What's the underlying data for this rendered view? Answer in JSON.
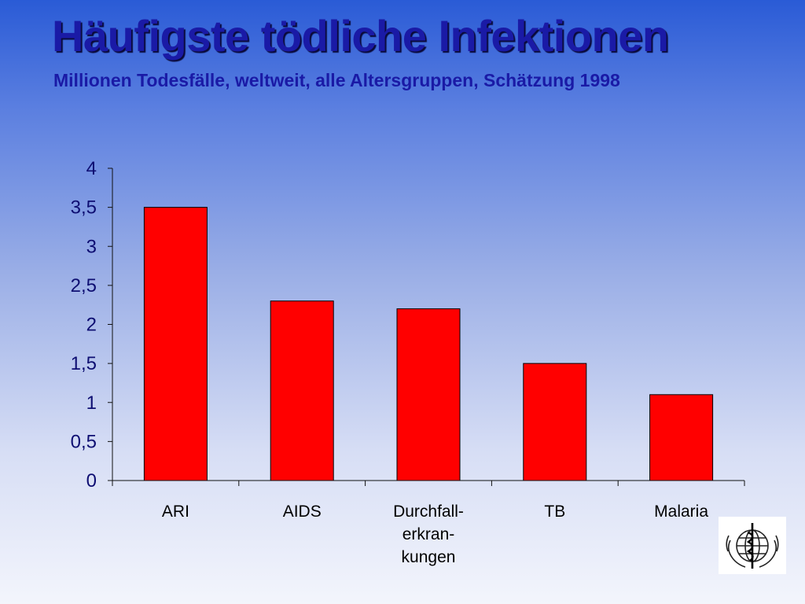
{
  "chart_data": {
    "type": "bar",
    "title": "Häufigste tödliche Infektionen",
    "subtitle": "Millionen Todesfälle, weltweit, alle Altersgruppen, Schätzung 1998",
    "categories": [
      [
        "ARI"
      ],
      [
        "AIDS"
      ],
      [
        "Durchfall-",
        "erkran-",
        "kungen"
      ],
      [
        "TB"
      ],
      [
        "Malaria"
      ]
    ],
    "values": [
      3.5,
      2.3,
      2.2,
      1.5,
      1.1
    ],
    "ylim": [
      0,
      4
    ],
    "yticks": [
      0,
      0.5,
      1,
      1.5,
      2,
      2.5,
      3,
      3.5,
      4
    ],
    "ytick_labels": [
      "0",
      "0,5",
      "1",
      "1,5",
      "2",
      "2,5",
      "3",
      "3,5",
      "4"
    ],
    "xlabel": "",
    "ylabel": "",
    "grid": false,
    "bar_color": "#ff0000"
  },
  "logo": {
    "icon": "who-emblem-icon"
  }
}
